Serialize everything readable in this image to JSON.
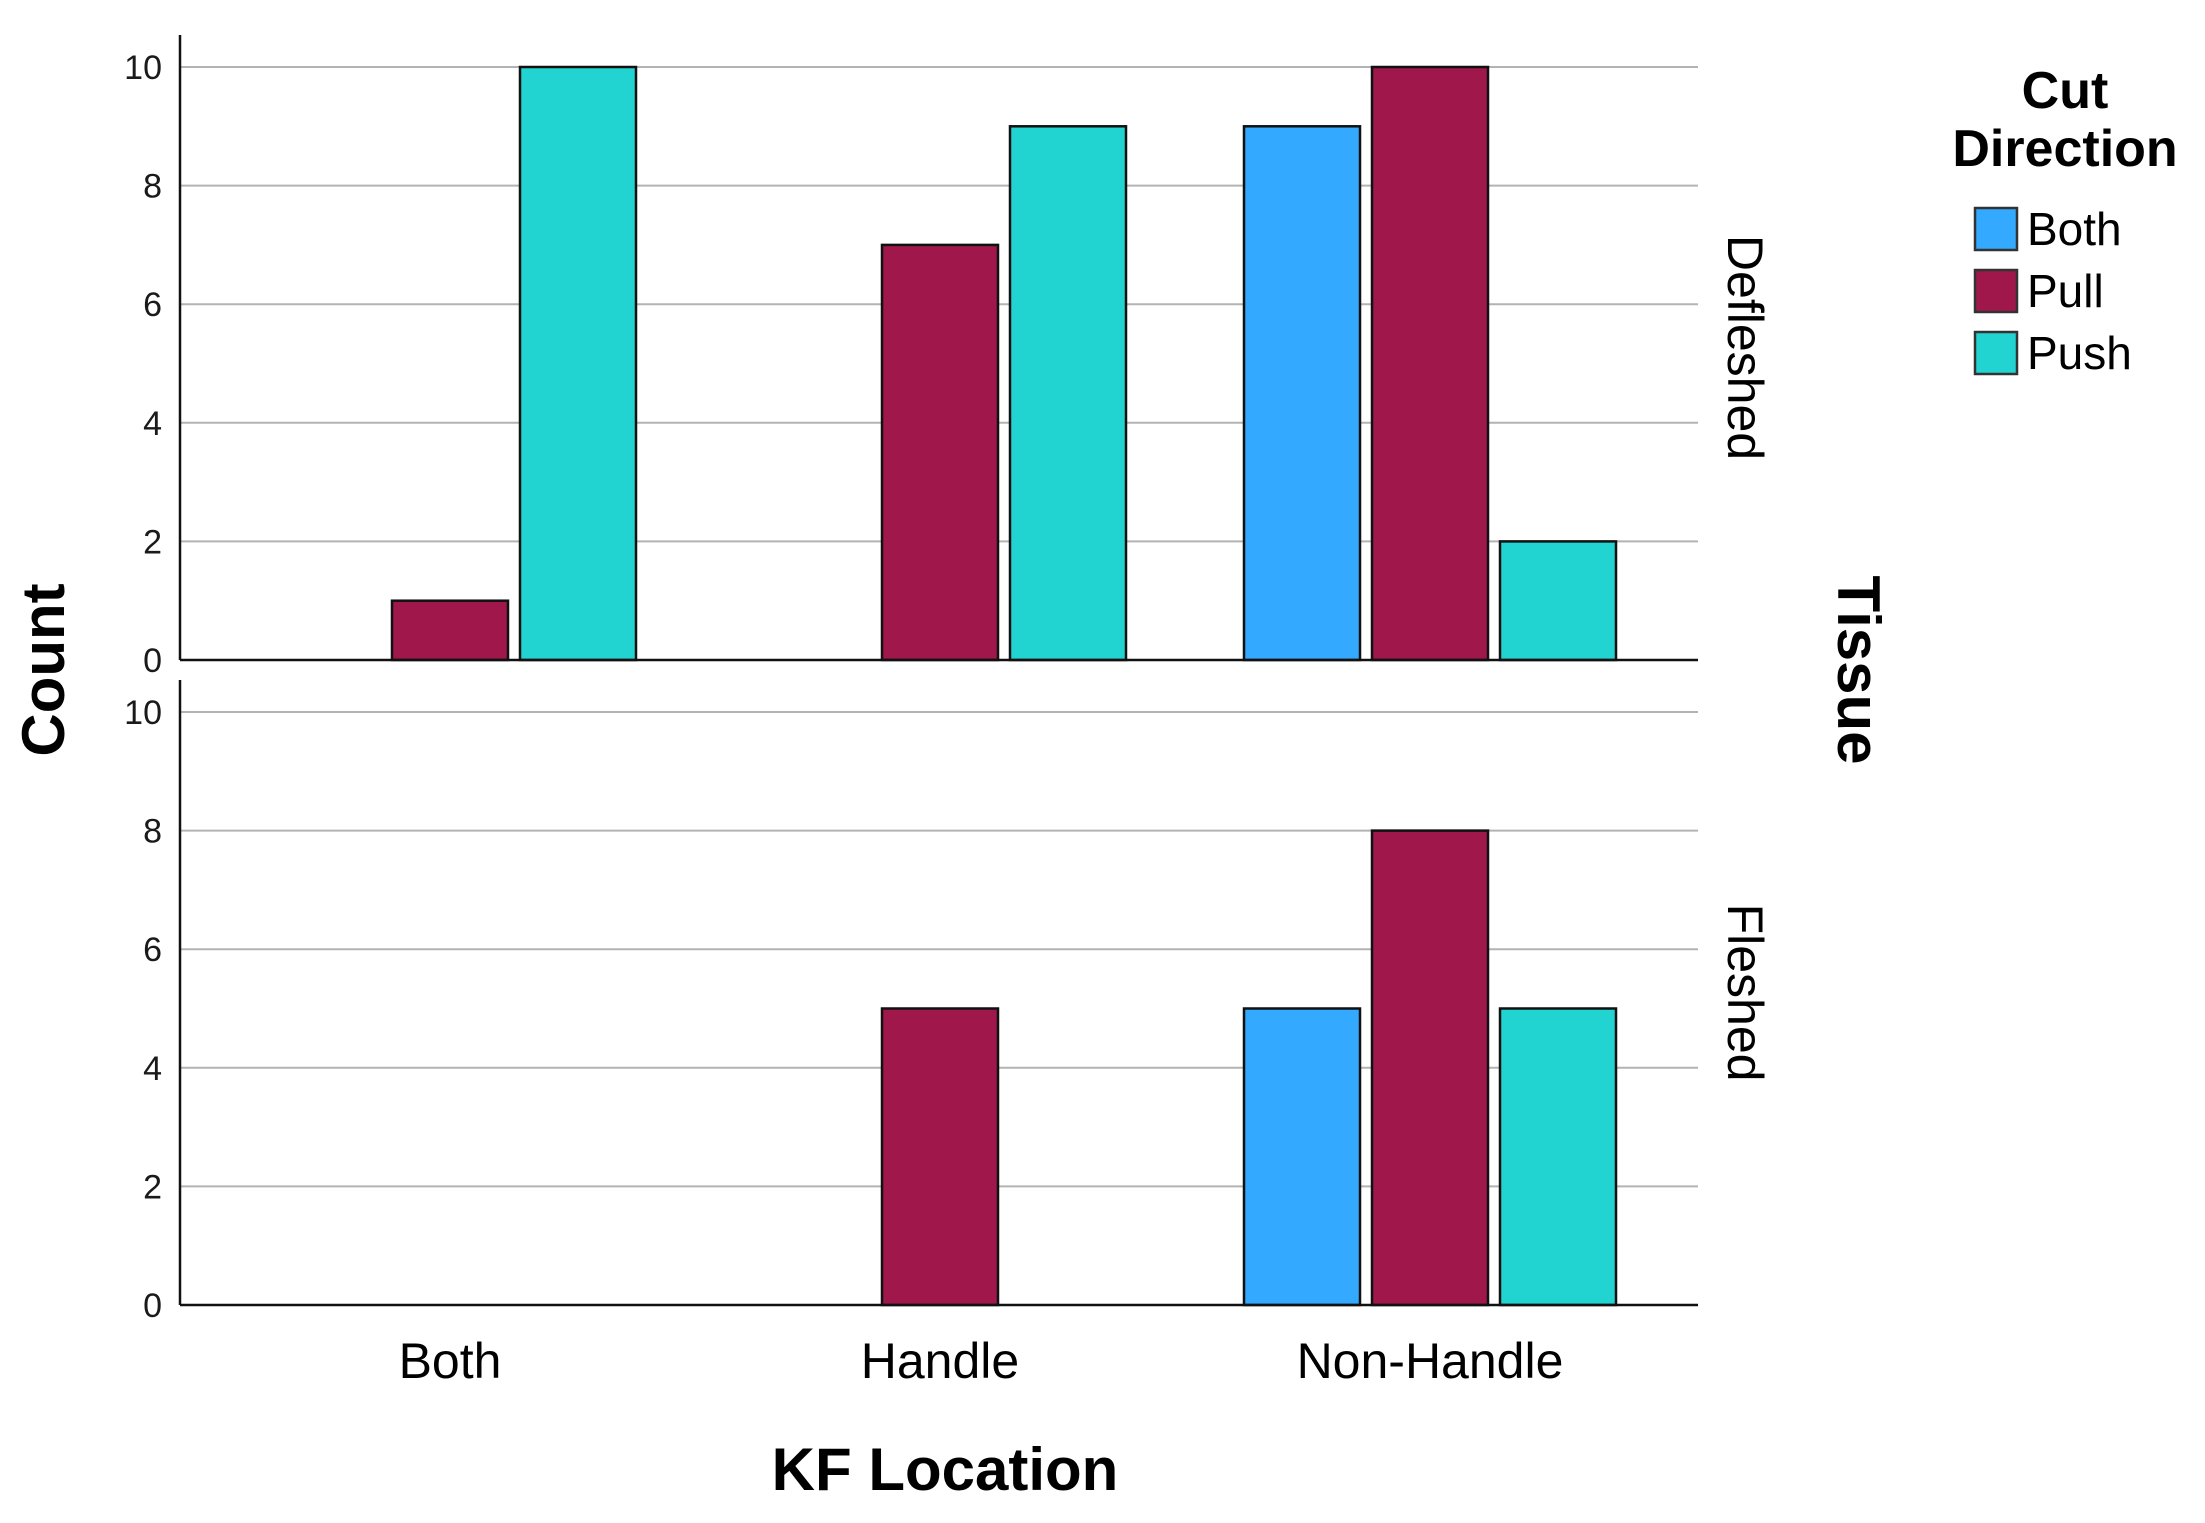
{
  "chart_data": {
    "type": "bar",
    "categories": [
      "Both",
      "Handle",
      "Non-Handle"
    ],
    "xlabel": "KF Location",
    "ylabel": "Count",
    "ylim": [
      0,
      10
    ],
    "yticks": [
      0,
      2,
      4,
      6,
      8,
      10
    ],
    "grid": true,
    "facet_title": "Tissue",
    "legend": {
      "title": "Cut Direction",
      "title_lines": [
        "Cut",
        "Direction"
      ],
      "placement": "top-right"
    },
    "series_colors": {
      "Both": "#33aaff",
      "Pull": "#a0174b",
      "Push": "#22d4d1"
    },
    "panels": [
      {
        "name": "Defleshed",
        "series": [
          {
            "name": "Both",
            "values": [
              0,
              0,
              9
            ]
          },
          {
            "name": "Pull",
            "values": [
              1,
              7,
              10
            ]
          },
          {
            "name": "Push",
            "values": [
              10,
              9,
              2
            ]
          }
        ]
      },
      {
        "name": "Fleshed",
        "series": [
          {
            "name": "Both",
            "values": [
              0,
              0,
              5
            ]
          },
          {
            "name": "Pull",
            "values": [
              0,
              5,
              8
            ]
          },
          {
            "name": "Push",
            "values": [
              0,
              0,
              5
            ]
          }
        ]
      }
    ]
  }
}
